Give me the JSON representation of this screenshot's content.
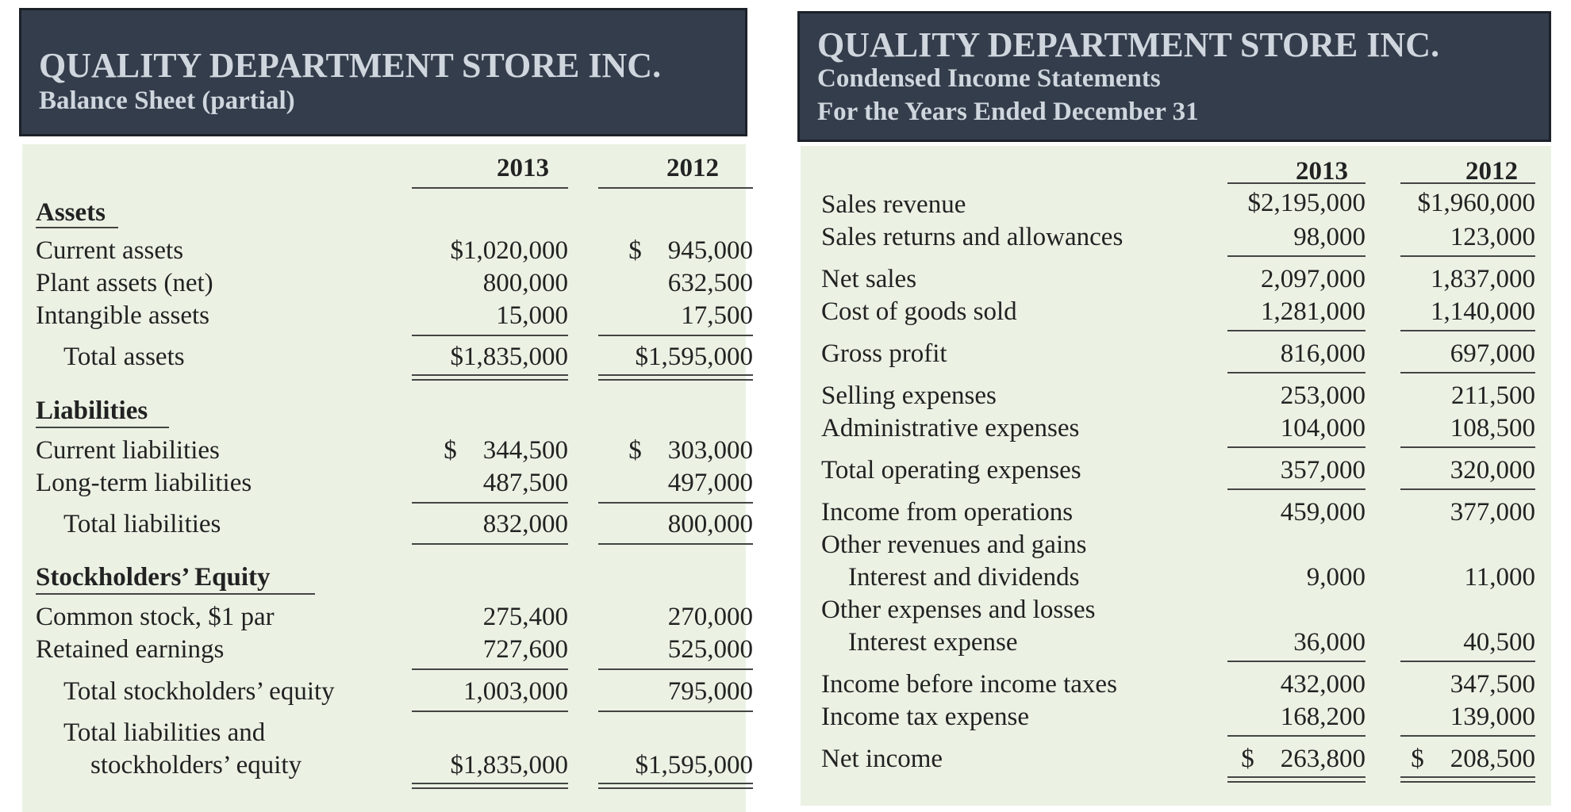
{
  "balance_sheet": {
    "company": "QUALITY DEPARTMENT STORE INC.",
    "subtitle": "Balance Sheet (partial)",
    "years": [
      "2013",
      "2012"
    ],
    "assets_heading": "Assets",
    "current_assets": {
      "label": "Current assets",
      "v2013": "$1,020,000",
      "v2012": "$    945,000"
    },
    "plant_assets": {
      "label": "Plant assets (net)",
      "v2013": "800,000",
      "v2012": "632,500"
    },
    "intangible_assets": {
      "label": "Intangible assets",
      "v2013": "15,000",
      "v2012": "17,500"
    },
    "total_assets": {
      "label": "Total assets",
      "v2013": "$1,835,000",
      "v2012": "$1,595,000"
    },
    "liabilities_heading": "Liabilities",
    "current_liabilities": {
      "label": "Current liabilities",
      "v2013": "$    344,500",
      "v2012": "$    303,000"
    },
    "long_term_liabilities": {
      "label": "Long-term liabilities",
      "v2013": "487,500",
      "v2012": "497,000"
    },
    "total_liabilities": {
      "label": "Total liabilities",
      "v2013": "832,000",
      "v2012": "800,000"
    },
    "equity_heading": "Stockholders’ Equity",
    "common_stock": {
      "label": "Common stock, $1 par",
      "v2013": "275,400",
      "v2012": "270,000"
    },
    "retained_earnings": {
      "label": "Retained earnings",
      "v2013": "727,600",
      "v2012": "525,000"
    },
    "total_equity": {
      "label": "Total stockholders’ equity",
      "v2013": "1,003,000",
      "v2012": "795,000"
    },
    "total_liab_equity": {
      "label1": "Total liabilities and",
      "label2": "stockholders’ equity",
      "v2013": "$1,835,000",
      "v2012": "$1,595,000"
    }
  },
  "income_statement": {
    "company": "QUALITY DEPARTMENT STORE INC.",
    "subtitle1": "Condensed Income Statements",
    "subtitle2": "For the Years Ended December 31",
    "years": [
      "2013",
      "2012"
    ],
    "sales_revenue": {
      "label": "Sales revenue",
      "v2013": "$2,195,000",
      "v2012": "$1,960,000"
    },
    "sales_returns": {
      "label": "Sales returns and allowances",
      "v2013": "98,000",
      "v2012": "123,000"
    },
    "net_sales": {
      "label": "Net sales",
      "v2013": "2,097,000",
      "v2012": "1,837,000"
    },
    "cogs": {
      "label": "Cost of goods sold",
      "v2013": "1,281,000",
      "v2012": "1,140,000"
    },
    "gross_profit": {
      "label": "Gross profit",
      "v2013": "816,000",
      "v2012": "697,000"
    },
    "selling_expenses": {
      "label": "Selling expenses",
      "v2013": "253,000",
      "v2012": "211,500"
    },
    "admin_expenses": {
      "label": "Administrative expenses",
      "v2013": "104,000",
      "v2012": "108,500"
    },
    "total_operating": {
      "label": "Total operating expenses",
      "v2013": "357,000",
      "v2012": "320,000"
    },
    "income_from_ops": {
      "label": "Income from operations",
      "v2013": "459,000",
      "v2012": "377,000"
    },
    "other_revenues": {
      "label": "Other revenues and gains"
    },
    "interest_dividends": {
      "label": "Interest and dividends",
      "v2013": "9,000",
      "v2012": "11,000"
    },
    "other_expenses": {
      "label": "Other expenses and losses"
    },
    "interest_expense": {
      "label": "Interest expense",
      "v2013": "36,000",
      "v2012": "40,500"
    },
    "income_before_taxes": {
      "label": "Income before income taxes",
      "v2013": "432,000",
      "v2012": "347,500"
    },
    "income_tax": {
      "label": "Income tax expense",
      "v2013": "168,200",
      "v2012": "139,000"
    },
    "net_income": {
      "label": "Net income",
      "v2013": "$    263,800",
      "v2012": "$    208,500"
    }
  }
}
